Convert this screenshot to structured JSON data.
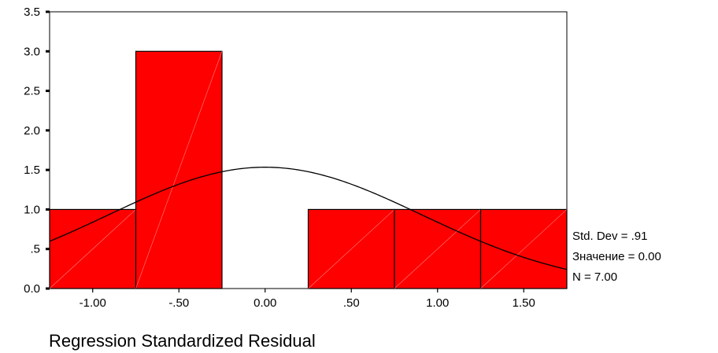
{
  "chart_data": {
    "type": "bar",
    "subtype": "histogram",
    "xlabel": "Regression Standardized Residual",
    "ylabel": "",
    "title": "",
    "bins": [
      {
        "start": -1.25,
        "end": -0.75,
        "count": 1
      },
      {
        "start": -0.75,
        "end": -0.25,
        "count": 3
      },
      {
        "start": -0.25,
        "end": 0.25,
        "count": 0
      },
      {
        "start": 0.25,
        "end": 0.75,
        "count": 1
      },
      {
        "start": 0.75,
        "end": 1.25,
        "count": 1
      },
      {
        "start": 1.25,
        "end": 1.75,
        "count": 1
      }
    ],
    "xlim": [
      -1.25,
      1.75
    ],
    "ylim": [
      0,
      3.5
    ],
    "x_ticks": [
      -1.0,
      -0.5,
      0.0,
      0.5,
      1.0,
      1.5
    ],
    "x_tick_labels": [
      "-1.00",
      "-.50",
      "0.00",
      ".50",
      "1.00",
      "1.50"
    ],
    "y_ticks": [
      0,
      0.5,
      1.0,
      1.5,
      2.0,
      2.5,
      3.0,
      3.5
    ],
    "y_tick_labels": [
      "0.0",
      ".5",
      "1.0",
      "1.5",
      "2.0",
      "2.5",
      "3.0",
      "3.5"
    ],
    "normal_curve": {
      "mean": 0.0,
      "std": 0.91,
      "n": 7,
      "bin_width": 0.5
    },
    "stats": {
      "std_dev": "Std. Dev = .91",
      "mean": "Значение = 0.00",
      "n": "N = 7.00"
    },
    "colors": {
      "bar_fill": "#ff0000",
      "bar_stroke": "#000000",
      "curve": "#000000",
      "background": "#ffffff"
    }
  }
}
